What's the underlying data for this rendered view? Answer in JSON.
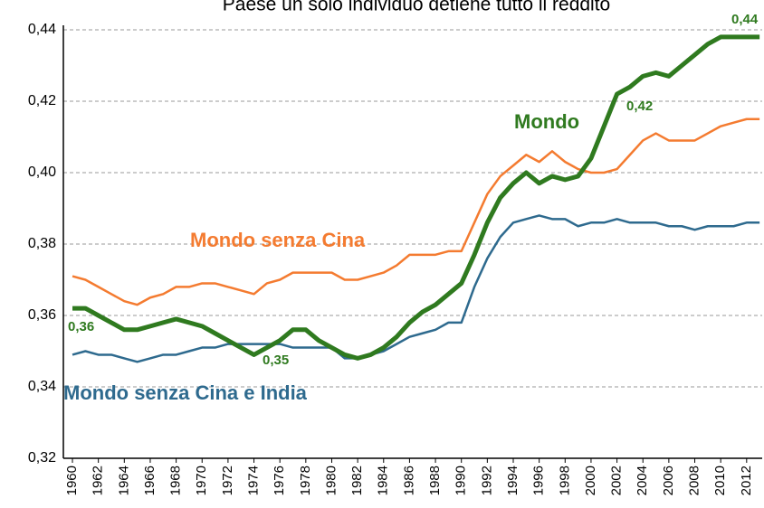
{
  "chart_data": {
    "type": "line",
    "title": "Paese un solo individuo detiene tutto il reddito",
    "x": [
      1960,
      1961,
      1962,
      1963,
      1964,
      1965,
      1966,
      1967,
      1968,
      1969,
      1970,
      1971,
      1972,
      1973,
      1974,
      1975,
      1976,
      1977,
      1978,
      1979,
      1980,
      1981,
      1982,
      1983,
      1984,
      1985,
      1986,
      1987,
      1988,
      1989,
      1990,
      1991,
      1992,
      1993,
      1994,
      1995,
      1996,
      1997,
      1998,
      1999,
      2000,
      2001,
      2002,
      2003,
      2004,
      2005,
      2006,
      2007,
      2008,
      2009,
      2010,
      2011,
      2012,
      2013
    ],
    "series": [
      {
        "name": "Mondo senza Cina",
        "color": "#f47b30",
        "values": [
          0.371,
          0.37,
          0.368,
          0.366,
          0.364,
          0.363,
          0.365,
          0.366,
          0.368,
          0.368,
          0.369,
          0.369,
          0.368,
          0.367,
          0.366,
          0.369,
          0.37,
          0.372,
          0.372,
          0.372,
          0.372,
          0.37,
          0.37,
          0.371,
          0.372,
          0.374,
          0.377,
          0.377,
          0.377,
          0.378,
          0.378,
          0.386,
          0.394,
          0.399,
          0.402,
          0.405,
          0.403,
          0.406,
          0.403,
          0.401,
          0.4,
          0.4,
          0.401,
          0.405,
          0.409,
          0.411,
          0.409,
          0.409,
          0.409,
          0.411,
          0.413,
          0.414,
          0.415,
          0.415
        ]
      },
      {
        "name": "Mondo senza Cina e India",
        "color": "#2e6a8e",
        "values": [
          0.349,
          0.35,
          0.349,
          0.349,
          0.348,
          0.347,
          0.348,
          0.349,
          0.349,
          0.35,
          0.351,
          0.351,
          0.352,
          0.352,
          0.352,
          0.352,
          0.352,
          0.351,
          0.351,
          0.351,
          0.351,
          0.348,
          0.348,
          0.349,
          0.35,
          0.352,
          0.354,
          0.355,
          0.356,
          0.358,
          0.358,
          0.368,
          0.376,
          0.382,
          0.386,
          0.387,
          0.388,
          0.387,
          0.387,
          0.385,
          0.386,
          0.386,
          0.387,
          0.386,
          0.386,
          0.386,
          0.385,
          0.385,
          0.384,
          0.385,
          0.385,
          0.385,
          0.386,
          0.386
        ]
      },
      {
        "name": "Mondo",
        "color": "#2f7a1f",
        "values": [
          0.362,
          0.362,
          0.36,
          0.358,
          0.356,
          0.356,
          0.357,
          0.358,
          0.359,
          0.358,
          0.357,
          0.355,
          0.353,
          0.351,
          0.349,
          0.351,
          0.353,
          0.356,
          0.356,
          0.353,
          0.351,
          0.349,
          0.348,
          0.349,
          0.351,
          0.354,
          0.358,
          0.361,
          0.363,
          0.366,
          0.369,
          0.377,
          0.386,
          0.393,
          0.397,
          0.4,
          0.397,
          0.399,
          0.398,
          0.399,
          0.404,
          0.413,
          0.422,
          0.424,
          0.427,
          0.428,
          0.427,
          0.43,
          0.433,
          0.436,
          0.438,
          0.438,
          0.438,
          0.438
        ]
      }
    ],
    "annotations": [
      "0,36",
      "0,35",
      "0,42",
      "0,44"
    ],
    "xlim": [
      1959.3,
      2013.2
    ],
    "xticks": [
      1960,
      1962,
      1964,
      1966,
      1968,
      1970,
      1972,
      1974,
      1976,
      1978,
      1980,
      1982,
      1984,
      1986,
      1988,
      1990,
      1992,
      1994,
      1996,
      1998,
      2000,
      2002,
      2004,
      2006,
      2008,
      2010,
      2012
    ],
    "ylim": [
      0.32,
      0.44
    ],
    "yticks": [
      {
        "value": 0.32,
        "label": "0,32"
      },
      {
        "value": 0.34,
        "label": "0,34"
      },
      {
        "value": 0.36,
        "label": "0,36"
      },
      {
        "value": 0.38,
        "label": "0,38"
      },
      {
        "value": 0.4,
        "label": "0,40"
      },
      {
        "value": 0.42,
        "label": "0,42"
      },
      {
        "value": 0.44,
        "label": "0,44"
      }
    ],
    "grid": true
  }
}
